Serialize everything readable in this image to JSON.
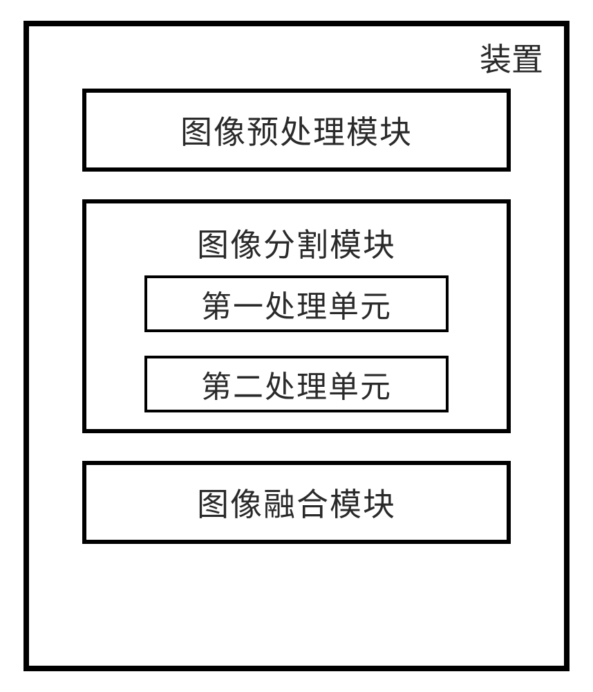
{
  "device": {
    "title": "装置",
    "border_color": "#000000",
    "border_width": 8,
    "background_color": "#ffffff",
    "text_color": "#2a2a2a",
    "title_fontsize": 46
  },
  "modules": {
    "preprocessing": {
      "label": "图像预处理模块",
      "border_width": 6,
      "fontsize": 46
    },
    "segmentation": {
      "label": "图像分割模块",
      "border_width": 6,
      "fontsize": 46,
      "units": {
        "first": {
          "label": "第一处理单元",
          "border_width": 4,
          "fontsize": 44
        },
        "second": {
          "label": "第二处理单元",
          "border_width": 4,
          "fontsize": 44
        }
      }
    },
    "fusion": {
      "label": "图像融合模块",
      "border_width": 6,
      "fontsize": 46
    }
  },
  "layout": {
    "type": "flowchart",
    "container_width": 790,
    "container_height": 940,
    "module_width": 620,
    "simple_module_height": 120,
    "unit_width": 440,
    "unit_height": 82,
    "module_gap": 40
  }
}
